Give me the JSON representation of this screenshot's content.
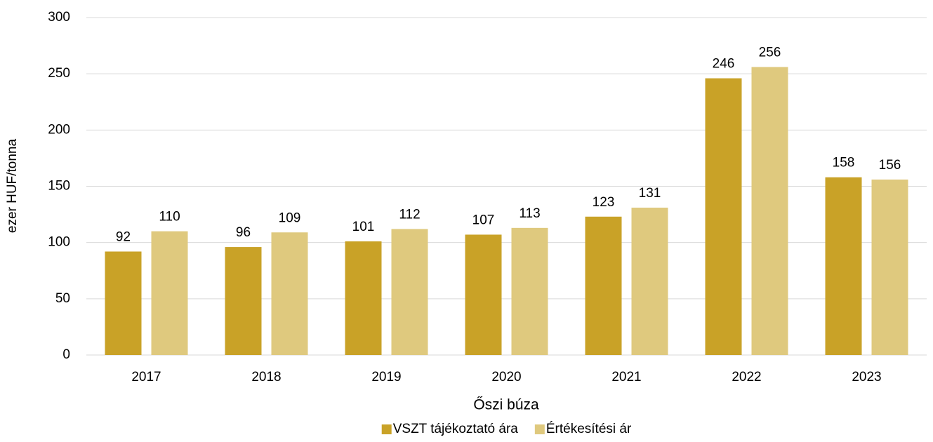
{
  "chart_data": {
    "type": "bar",
    "categories": [
      "2017",
      "2018",
      "2019",
      "2020",
      "2021",
      "2022",
      "2023"
    ],
    "series": [
      {
        "name": "VSZT tájékoztató ára",
        "color": "#c9a227",
        "values": [
          92,
          96,
          101,
          107,
          123,
          246,
          158
        ]
      },
      {
        "name": "Értékesítési ár",
        "color": "#dfc97e",
        "values": [
          110,
          109,
          112,
          113,
          131,
          256,
          156
        ]
      }
    ],
    "ylabel": "ezer HUF/tonna",
    "xlabel": "Őszi búza",
    "ylim": [
      0,
      300
    ],
    "yticks": [
      0,
      50,
      100,
      150,
      200,
      250,
      300
    ],
    "grid": true,
    "legend": "bottom"
  }
}
